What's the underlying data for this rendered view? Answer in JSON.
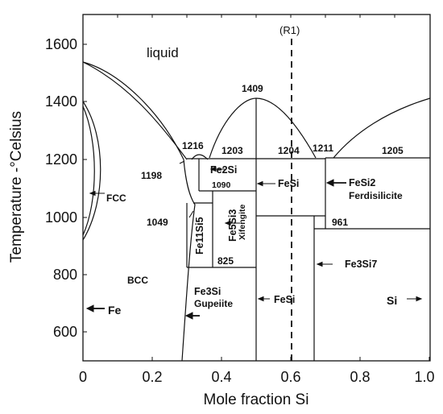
{
  "axes": {
    "xlabel": "Mole fraction Si",
    "ylabel": "Temperature -°Celsius",
    "x_ticks": [
      "0",
      "0.2",
      "0.4",
      "0.6",
      "0.8",
      "1.0"
    ],
    "y_ticks": [
      "600",
      "800",
      "1000",
      "1200",
      "1400",
      "1600"
    ]
  },
  "regions": {
    "liquid": "liquid",
    "bcc": "BCC",
    "fcc": "FCC",
    "fe": "Fe",
    "si": "Si"
  },
  "labels": {
    "r1": "(R1)",
    "t1409": "1409",
    "t1216": "1216",
    "t1203": "1203",
    "t1204": "1204",
    "t1211": "1211",
    "t1205": "1205",
    "t1198": "1198",
    "t1090": "1090",
    "t1049": "1049",
    "t825": "825",
    "t961": "961"
  },
  "phases": {
    "fe2si": "Fe2Si",
    "fesi_upper": "FeSi",
    "fesi2": "FeSi2",
    "ferdisilicite": "Ferdisilicite",
    "fe5si3": "Fe5Si3",
    "xifengite": "Xifengite",
    "fe11si5": "Fe11Si5",
    "fe3si": "Fe3Si",
    "gupeiite": "Gupeiite",
    "fesi_lower": "FeSi",
    "fe3si7": "Fe3Si7"
  }
}
